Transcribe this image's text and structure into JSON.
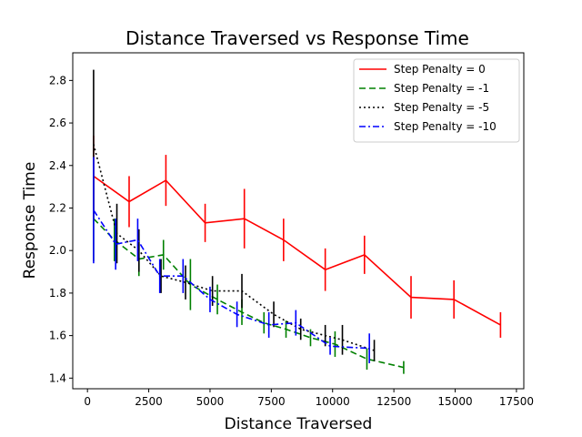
{
  "chart_data": {
    "type": "line",
    "title": "Distance Traversed vs Response Time",
    "xlabel": "Distance Traversed",
    "ylabel": "Response Time",
    "xlim": [
      -600,
      17800
    ],
    "ylim": [
      1.35,
      2.93
    ],
    "x_ticks": [
      0,
      2500,
      5000,
      7500,
      10000,
      12500,
      15000,
      17500
    ],
    "y_ticks": [
      1.4,
      1.6,
      1.8,
      2.0,
      2.2,
      2.4,
      2.6,
      2.8
    ],
    "x_tick_labels": [
      "0",
      "2500",
      "5000",
      "7500",
      "10000",
      "12500",
      "15000",
      "17500"
    ],
    "y_tick_labels": [
      "1.4",
      "1.6",
      "1.8",
      "2.0",
      "2.2",
      "2.4",
      "2.6",
      "2.8"
    ],
    "grid": false,
    "legend_position": "top-right",
    "series": [
      {
        "name": "Step Penalty = 0",
        "color": "#ff0000",
        "dash": "",
        "x": [
          250,
          1700,
          3200,
          4800,
          6400,
          8000,
          9700,
          11300,
          13200,
          14950,
          16850
        ],
        "y": [
          2.35,
          2.23,
          2.33,
          2.13,
          2.15,
          2.05,
          1.91,
          1.98,
          1.78,
          1.77,
          1.65
        ],
        "err": [
          0.19,
          0.12,
          0.12,
          0.09,
          0.14,
          0.1,
          0.1,
          0.09,
          0.1,
          0.09,
          0.06
        ]
      },
      {
        "name": "Step Penalty = -1",
        "color": "#008000",
        "dash": "7,4",
        "x": [
          250,
          1100,
          2100,
          3100,
          4200,
          5300,
          6300,
          7200,
          8100,
          9100,
          10100,
          11400,
          12900
        ],
        "y": [
          2.15,
          2.05,
          1.96,
          1.98,
          1.84,
          1.77,
          1.71,
          1.66,
          1.63,
          1.59,
          1.56,
          1.49,
          1.45
        ],
        "err": [
          0.2,
          0.1,
          0.08,
          0.07,
          0.12,
          0.07,
          0.06,
          0.05,
          0.04,
          0.04,
          0.06,
          0.05,
          0.03
        ]
      },
      {
        "name": "Step Penalty = -5",
        "color": "#000000",
        "dash": "2,3",
        "x": [
          250,
          1200,
          2100,
          3000,
          4000,
          5100,
          6300,
          7600,
          8700,
          9700,
          10400,
          11700
        ],
        "y": [
          2.5,
          2.08,
          2.0,
          1.88,
          1.85,
          1.81,
          1.81,
          1.7,
          1.63,
          1.6,
          1.58,
          1.53
        ],
        "err": [
          0.35,
          0.14,
          0.1,
          0.08,
          0.08,
          0.07,
          0.08,
          0.06,
          0.05,
          0.05,
          0.07,
          0.05
        ]
      },
      {
        "name": "Step Penalty = -10",
        "color": "#0000ff",
        "dash": "7,3,2,3",
        "x": [
          250,
          1150,
          2050,
          2950,
          3900,
          5000,
          6100,
          7400,
          8500,
          9900,
          11500
        ],
        "y": [
          2.19,
          2.03,
          2.05,
          1.88,
          1.88,
          1.77,
          1.7,
          1.65,
          1.66,
          1.55,
          1.54
        ],
        "err": [
          0.25,
          0.12,
          0.1,
          0.08,
          0.08,
          0.06,
          0.06,
          0.06,
          0.06,
          0.04,
          0.07
        ]
      }
    ]
  }
}
